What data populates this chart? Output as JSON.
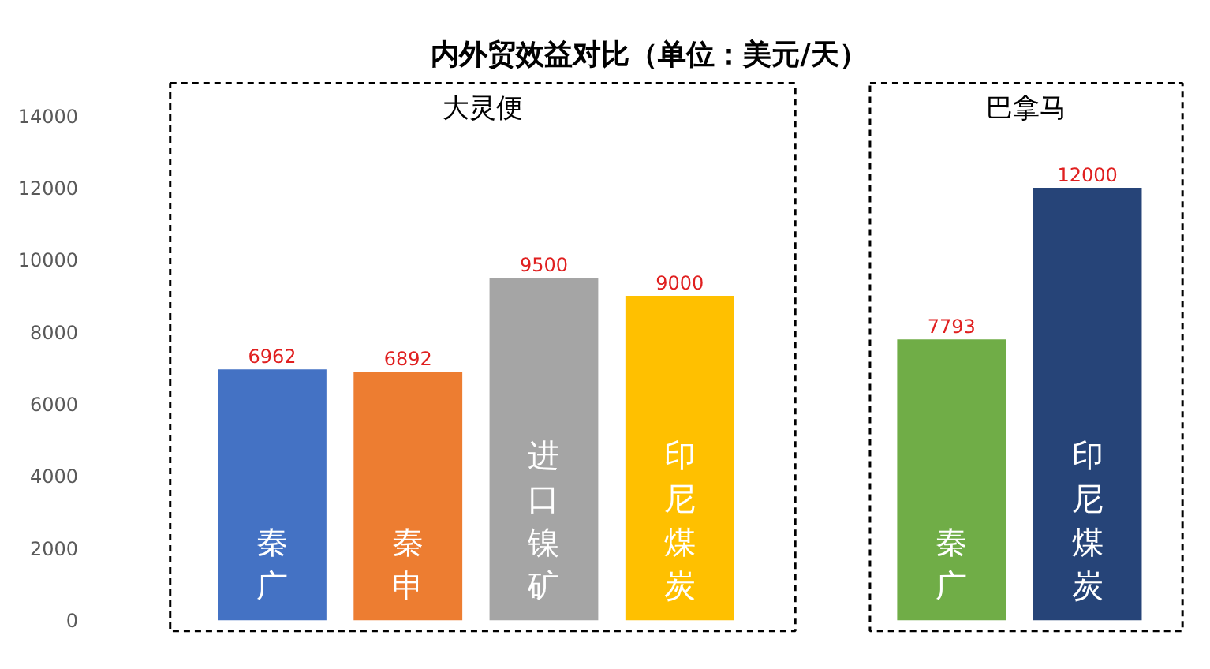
{
  "chart_data": {
    "type": "bar",
    "title": "内外贸效益对比（单位：美元/天）",
    "categories": [
      "秦广",
      "秦申",
      "进口镍矿",
      "印尼煤炭",
      null,
      "秦广",
      "印尼煤炭"
    ],
    "values": [
      6962,
      6892,
      9500,
      9000,
      null,
      7793,
      12000
    ],
    "colors": [
      "#4472c4",
      "#ed7d31",
      "#a5a5a5",
      "#ffc000",
      "#ffffff",
      "#70ad47",
      "#264478"
    ],
    "data_labels": true,
    "annotations": [
      "大灵便",
      "巴拿马"
    ],
    "ylim": [
      -500,
      15000
    ],
    "yticks": [
      0,
      2000,
      4000,
      6000,
      8000,
      10000,
      12000,
      14000
    ],
    "grid": false
  }
}
